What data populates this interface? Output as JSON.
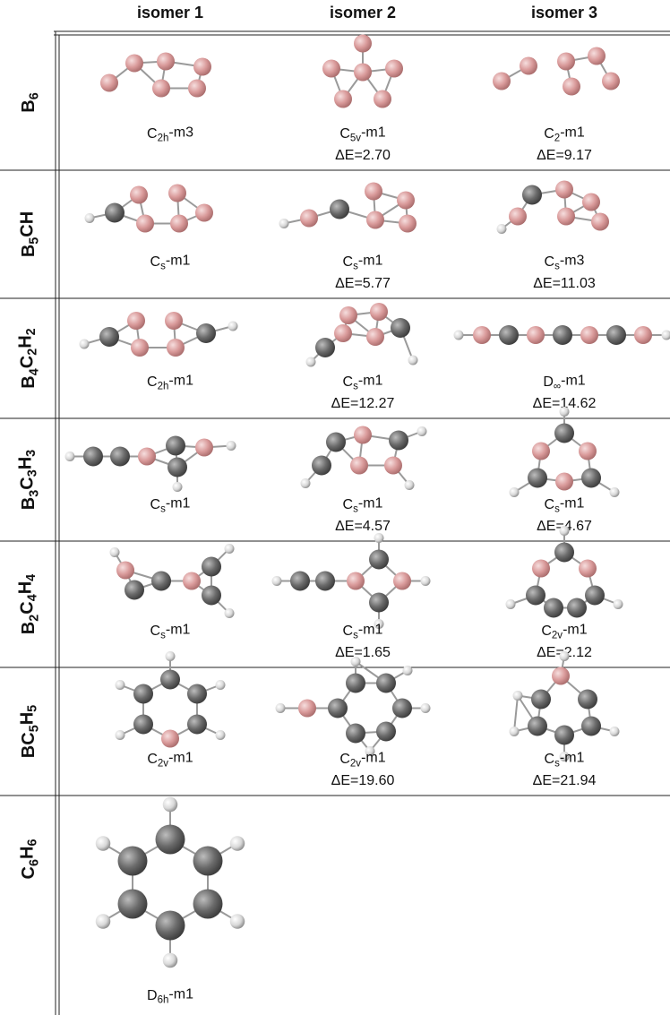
{
  "header": {
    "columns": [
      "isomer 1",
      "isomer 2",
      "isomer 3"
    ]
  },
  "rows": [
    {
      "formula": [
        {
          "text": "B"
        },
        {
          "sub": "6"
        }
      ],
      "isomers": [
        {
          "label": [
            {
              "text": "C"
            },
            {
              "sub": "2h"
            },
            {
              "text": "-m3"
            }
          ]
        },
        {
          "label": [
            {
              "text": "C"
            },
            {
              "sub": "5v"
            },
            {
              "text": "-m1"
            }
          ],
          "energy": "ΔE=2.70"
        },
        {
          "label": [
            {
              "text": "C"
            },
            {
              "sub": "2"
            },
            {
              "text": "-m1"
            }
          ],
          "energy": "ΔE=9.17"
        }
      ]
    },
    {
      "formula": [
        {
          "text": "B"
        },
        {
          "sub": "5"
        },
        {
          "text": "CH"
        }
      ],
      "isomers": [
        {
          "label": [
            {
              "text": "C"
            },
            {
              "sub": "s"
            },
            {
              "text": "-m1"
            }
          ]
        },
        {
          "label": [
            {
              "text": "C"
            },
            {
              "sub": "s"
            },
            {
              "text": "-m1"
            }
          ],
          "energy": "ΔE=5.77"
        },
        {
          "label": [
            {
              "text": "C"
            },
            {
              "sub": "s"
            },
            {
              "text": "-m3"
            }
          ],
          "energy": "ΔE=11.03"
        }
      ]
    },
    {
      "formula": [
        {
          "text": "B"
        },
        {
          "sub": "4"
        },
        {
          "text": "C"
        },
        {
          "sub": "2"
        },
        {
          "text": "H"
        },
        {
          "sub": "2"
        }
      ],
      "isomers": [
        {
          "label": [
            {
              "text": "C"
            },
            {
              "sub": "2h"
            },
            {
              "text": "-m1"
            }
          ]
        },
        {
          "label": [
            {
              "text": "C"
            },
            {
              "sub": "s"
            },
            {
              "text": "-m1"
            }
          ],
          "energy": "ΔE=12.27"
        },
        {
          "label": [
            {
              "text": "D"
            },
            {
              "sub": "∞"
            },
            {
              "text": "-m1"
            }
          ],
          "energy": "ΔE=14.62"
        }
      ]
    },
    {
      "formula": [
        {
          "text": "B"
        },
        {
          "sub": "3"
        },
        {
          "text": "C"
        },
        {
          "sub": "3"
        },
        {
          "text": "H"
        },
        {
          "sub": "3"
        }
      ],
      "isomers": [
        {
          "label": [
            {
              "text": "C"
            },
            {
              "sub": "s"
            },
            {
              "text": "-m1"
            }
          ]
        },
        {
          "label": [
            {
              "text": "C"
            },
            {
              "sub": "s"
            },
            {
              "text": "-m1"
            }
          ],
          "energy": "ΔE=4.57"
        },
        {
          "label": [
            {
              "text": "C"
            },
            {
              "sub": "s"
            },
            {
              "text": "-m1"
            }
          ],
          "energy": "ΔE=4.67"
        }
      ]
    },
    {
      "formula": [
        {
          "text": "B"
        },
        {
          "sub": "2"
        },
        {
          "text": "C"
        },
        {
          "sub": "4"
        },
        {
          "text": "H"
        },
        {
          "sub": "4"
        }
      ],
      "isomers": [
        {
          "label": [
            {
              "text": "C"
            },
            {
              "sub": "s"
            },
            {
              "text": "-m1"
            }
          ]
        },
        {
          "label": [
            {
              "text": "C"
            },
            {
              "sub": "s"
            },
            {
              "text": "-m1"
            }
          ],
          "energy": "ΔE=1.65"
        },
        {
          "label": [
            {
              "text": "C"
            },
            {
              "sub": "2v"
            },
            {
              "text": "-m1"
            }
          ],
          "energy": "ΔE=2.12"
        }
      ]
    },
    {
      "formula": [
        {
          "text": "BC"
        },
        {
          "sub": "5"
        },
        {
          "text": "H"
        },
        {
          "sub": "5"
        }
      ],
      "isomers": [
        {
          "label": [
            {
              "text": "C"
            },
            {
              "sub": "2v"
            },
            {
              "text": "-m1"
            }
          ]
        },
        {
          "label": [
            {
              "text": "C"
            },
            {
              "sub": "2v"
            },
            {
              "text": "-m1"
            }
          ],
          "energy": "ΔE=19.60"
        },
        {
          "label": [
            {
              "text": "C"
            },
            {
              "sub": "s"
            },
            {
              "text": "-m1"
            }
          ],
          "energy": "ΔE=21.94"
        }
      ]
    },
    {
      "formula": [
        {
          "text": "C"
        },
        {
          "sub": "6"
        },
        {
          "text": "H"
        },
        {
          "sub": "6"
        }
      ],
      "isomers": [
        {
          "label": [
            {
              "text": "D"
            },
            {
              "sub": "6h"
            },
            {
              "text": "-m1"
            }
          ]
        }
      ]
    }
  ]
}
